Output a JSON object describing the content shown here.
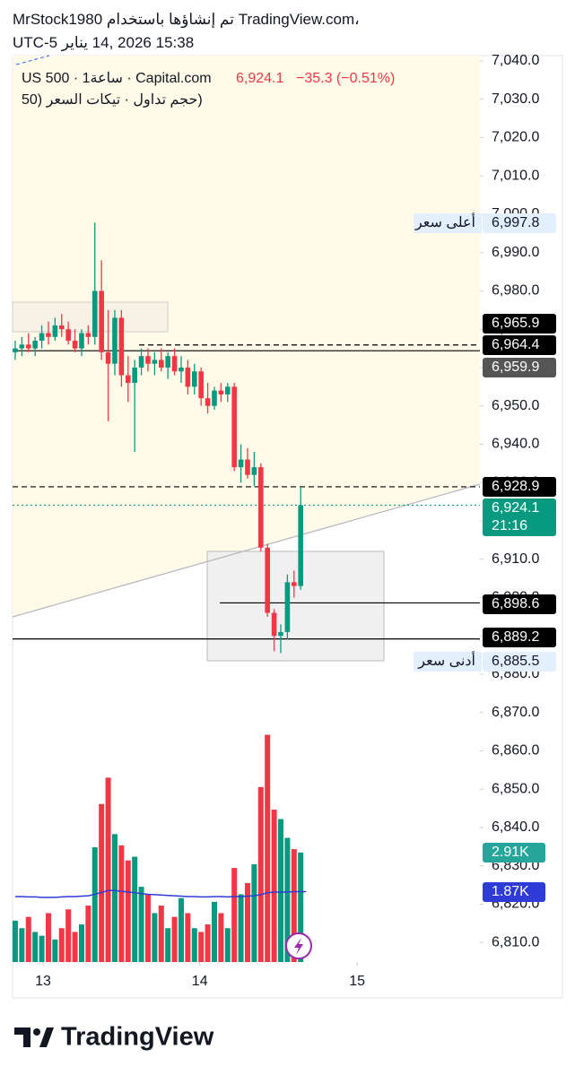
{
  "header": {
    "line1": "MrStock1980 تم إنشاؤها باستخدام TradingView.com،",
    "line2": "15:38 2026 ,14 يناير UTC-5"
  },
  "chart_data": {
    "type": "candlestick",
    "symbol_line": "US 500 · 1ساعة · Capital.com",
    "last_price": "6,924.1",
    "change": "−35.3 (−0.51%)",
    "indicator_line": "(حجم تداول · تيكات السعر (50",
    "ylim": [
      6804.9,
      7041.4
    ],
    "yticks": [
      {
        "value": 7040,
        "label": "7,040.0"
      },
      {
        "value": 7030,
        "label": "7,030.0"
      },
      {
        "value": 7020,
        "label": "7,020.0"
      },
      {
        "value": 7010,
        "label": "7,010.0"
      },
      {
        "value": 7000,
        "label": "7,000.0"
      },
      {
        "value": 6990,
        "label": "6,990.0"
      },
      {
        "value": 6980,
        "label": "6,980.0"
      },
      {
        "value": 6970,
        "label": "6,970.0"
      },
      {
        "value": 6960,
        "label": "6,960.0"
      },
      {
        "value": 6950,
        "label": "6,950.0"
      },
      {
        "value": 6940,
        "label": "6,940.0"
      },
      {
        "value": 6930,
        "label": "6,930.0"
      },
      {
        "value": 6920,
        "label": "6,920.0"
      },
      {
        "value": 6910,
        "label": "6,910.0"
      },
      {
        "value": 6900,
        "label": "6,900.0"
      },
      {
        "value": 6890,
        "label": "6,890.0"
      },
      {
        "value": 6880,
        "label": "6,880.0"
      },
      {
        "value": 6870,
        "label": "6,870.0"
      },
      {
        "value": 6860,
        "label": "6,860.0"
      },
      {
        "value": 6850,
        "label": "6,850.0"
      },
      {
        "value": 6840,
        "label": "6,840.0"
      },
      {
        "value": 6830,
        "label": "6,830.0"
      },
      {
        "value": 6820,
        "label": "6,820.0"
      },
      {
        "value": 6810,
        "label": "6,810.0"
      }
    ],
    "xlim": [
      -0.4,
      70
    ],
    "xticks": [
      {
        "value": 4.2,
        "label": "13"
      },
      {
        "value": 27.8,
        "label": "14"
      },
      {
        "value": 51.5,
        "label": "15"
      }
    ],
    "up_color": "#089981",
    "down_color": "#f23645",
    "open": [
      6964,
      6965,
      6966,
      6965,
      6967,
      6969,
      6968,
      6971,
      6970,
      6967,
      6965,
      6969,
      6968,
      6980,
      6964,
      6961,
      6973,
      6958,
      6956,
      6960,
      6963,
      6961,
      6962,
      6960,
      6963,
      6959,
      6960,
      6955,
      6959,
      6952,
      6950,
      6954,
      6953,
      6955,
      6934,
      6936,
      6932,
      6934,
      6913,
      6896,
      6890,
      6891,
      6904,
      6903
    ],
    "high": [
      6967,
      6968,
      6969,
      6968,
      6971,
      6972,
      6973,
      6974,
      6972,
      6970,
      6970,
      6971,
      6997.8,
      6988,
      6975,
      6975,
      6975,
      6963,
      6962,
      6965,
      6965,
      6964,
      6965,
      6964,
      6965,
      6963,
      6962,
      6961,
      6960,
      6956,
      6955,
      6956,
      6956,
      6956,
      6940,
      6939,
      6938,
      6935,
      6914,
      6897,
      6893,
      6906,
      6907,
      6928.9
    ],
    "low": [
      6962,
      6963,
      6964,
      6963,
      6965,
      6966,
      6967,
      6968,
      6966,
      6964,
      6963,
      6966,
      6966,
      6962,
      6946,
      6958,
      6955,
      6951,
      6938,
      6958,
      6959,
      6958,
      6959,
      6957,
      6958,
      6956,
      6953,
      6953,
      6950,
      6948,
      6949,
      6951,
      6951,
      6933,
      6930,
      6931,
      6929,
      6912,
      6895,
      6886,
      6885.5,
      6889,
      6900,
      6902
    ],
    "close": [
      6965,
      6966,
      6965,
      6967,
      6969,
      6968,
      6971,
      6970,
      6967,
      6965,
      6969,
      6968,
      6980,
      6964,
      6961,
      6973,
      6958,
      6956,
      6960,
      6963,
      6961,
      6962,
      6960,
      6963,
      6959,
      6960,
      6955,
      6959,
      6952,
      6950,
      6954,
      6953,
      6955,
      6934,
      6936,
      6932,
      6934,
      6913,
      6896,
      6890,
      6891,
      6904,
      6903,
      6924.1
    ],
    "vlim": [
      0,
      6100
    ],
    "volume": [
      1100,
      900,
      1200,
      800,
      700,
      1300,
      600,
      900,
      1400,
      800,
      1000,
      1500,
      3050,
      4200,
      4900,
      3400,
      3100,
      2700,
      2800,
      2000,
      1800,
      1300,
      1500,
      900,
      1200,
      1700,
      1300,
      900,
      800,
      1000,
      1600,
      1300,
      900,
      2500,
      1800,
      2100,
      2600,
      4650,
      6040,
      4050,
      3800,
      3300,
      3000,
      2910
    ],
    "volume_ma": [
      1740,
      1740,
      1730,
      1730,
      1720,
      1720,
      1720,
      1730,
      1740,
      1740,
      1750,
      1760,
      1800,
      1850,
      1900,
      1900,
      1880,
      1860,
      1840,
      1820,
      1800,
      1790,
      1780,
      1770,
      1760,
      1750,
      1740,
      1740,
      1730,
      1730,
      1740,
      1740,
      1730,
      1740,
      1740,
      1750,
      1760,
      1790,
      1840,
      1860,
      1860,
      1860,
      1870,
      1870
    ],
    "volume_ma_color": "#2e3bd6",
    "price_labels": [
      {
        "value": 6997.8,
        "label": "6,997.8",
        "note": "أعلى سعر",
        "bg": "#e3effd",
        "fg": "#131722"
      },
      {
        "value": 6965.9,
        "label": "6,965.9",
        "bg": "#000000",
        "fg": "#ffffff",
        "line": "dashed"
      },
      {
        "value": 6964.4,
        "label": "6,964.4",
        "bg": "#000000",
        "fg": "#ffffff",
        "line": "solid"
      },
      {
        "value": 6959.9,
        "label": "6,959.9",
        "bg": "#555555",
        "fg": "#ffffff"
      },
      {
        "value": 6928.9,
        "label": "6,928.9",
        "bg": "#000000",
        "fg": "#ffffff",
        "line": "dashed"
      },
      {
        "value": 6924.1,
        "label": "6,924.1",
        "sub": "21:16",
        "bg": "#089981",
        "fg": "#ffffff",
        "line": "dotted"
      },
      {
        "value": 6898.6,
        "label": "6,898.6",
        "bg": "#000000",
        "fg": "#ffffff",
        "line": "solid"
      },
      {
        "value": 6889.2,
        "label": "6,889.2",
        "bg": "#000000",
        "fg": "#ffffff",
        "line": "solid"
      },
      {
        "value": 6885.5,
        "label": "6,885.5",
        "note": "أدنى سعر",
        "bg": "#e3effd",
        "fg": "#131722"
      }
    ],
    "volume_labels": [
      {
        "value": 2910,
        "label": "2.91K",
        "bg": "#26a69a"
      },
      {
        "value": 1870,
        "label": "1.87K",
        "bg": "#2e3bd6"
      }
    ]
  },
  "footer": {
    "brand": "TradingView"
  }
}
